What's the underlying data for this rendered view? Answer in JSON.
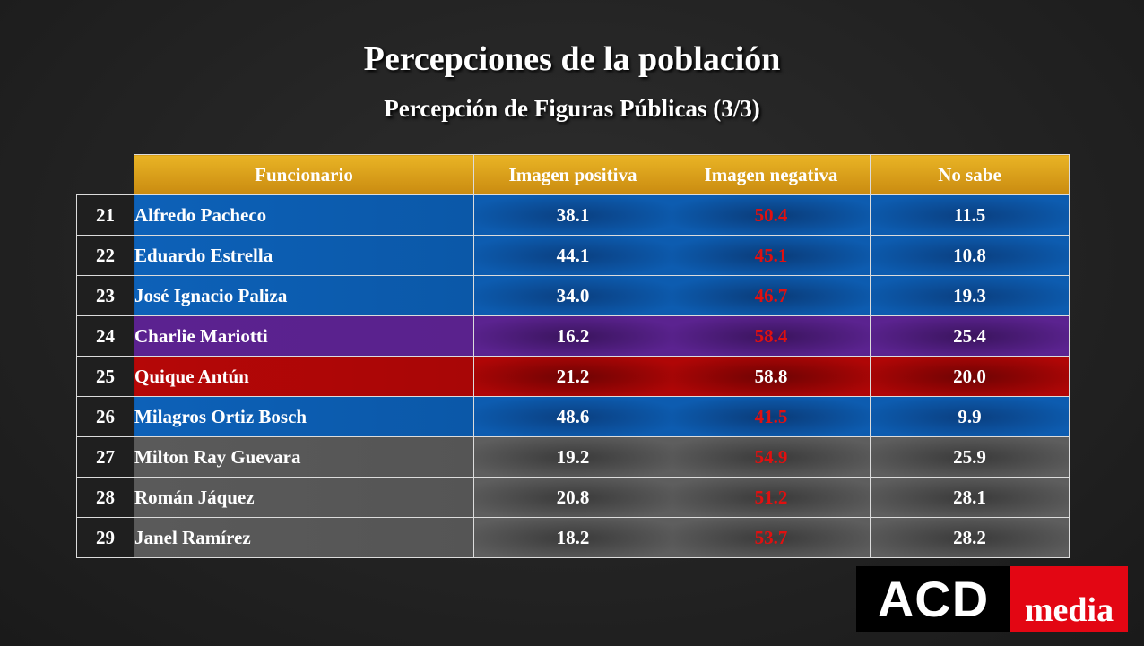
{
  "title": "Percepciones de la población",
  "subtitle": "Percepción de Figuras Públicas (3/3)",
  "columns": [
    "Funcionario",
    "Imagen positiva",
    "Imagen negativa",
    "No sabe"
  ],
  "colors": {
    "header_gold": "#d89c18",
    "blue": "#0d5cb0",
    "purple": "#5b2390",
    "red": "#b00606",
    "gray": "#5a5a5a",
    "negative_text": "#e01010"
  },
  "rows": [
    {
      "num": "21",
      "name": "Alfredo Pacheco",
      "positiva": "38.1",
      "negativa": "50.4",
      "no_sabe": "11.5",
      "party": "blue"
    },
    {
      "num": "22",
      "name": "Eduardo Estrella",
      "positiva": "44.1",
      "negativa": "45.1",
      "no_sabe": "10.8",
      "party": "blue"
    },
    {
      "num": "23",
      "name": "José Ignacio Paliza",
      "positiva": "34.0",
      "negativa": "46.7",
      "no_sabe": "19.3",
      "party": "blue"
    },
    {
      "num": "24",
      "name": "Charlie Mariotti",
      "positiva": "16.2",
      "negativa": "58.4",
      "no_sabe": "25.4",
      "party": "purple"
    },
    {
      "num": "25",
      "name": "Quique Antún",
      "positiva": "21.2",
      "negativa": "58.8",
      "no_sabe": "20.0",
      "party": "red"
    },
    {
      "num": "26",
      "name": "Milagros Ortiz Bosch",
      "positiva": "48.6",
      "negativa": "41.5",
      "no_sabe": "9.9",
      "party": "blue"
    },
    {
      "num": "27",
      "name": "Milton Ray Guevara",
      "positiva": "19.2",
      "negativa": "54.9",
      "no_sabe": "25.9",
      "party": "gray"
    },
    {
      "num": "28",
      "name": "Román Jáquez",
      "positiva": "20.8",
      "negativa": "51.2",
      "no_sabe": "28.1",
      "party": "gray"
    },
    {
      "num": "29",
      "name": "Janel Ramírez",
      "positiva": "18.2",
      "negativa": "53.7",
      "no_sabe": "28.2",
      "party": "gray"
    }
  ],
  "logo": {
    "left_text": "ACD",
    "right_text": "media"
  }
}
